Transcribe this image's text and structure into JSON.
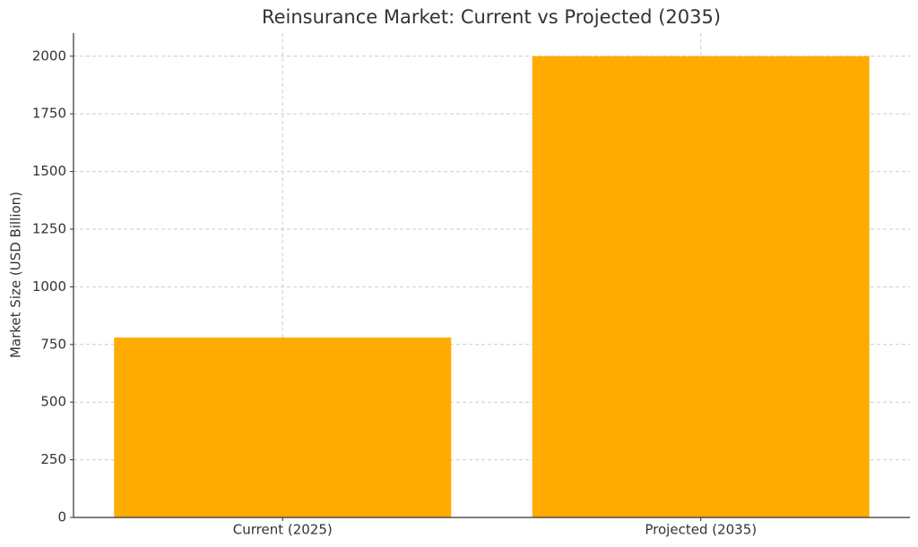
{
  "chart_data": {
    "type": "bar",
    "title": "Reinsurance Market: Current vs Projected (2035)",
    "ylabel": "Market Size (USD Billion)",
    "categories": [
      "Current (2025)",
      "Projected (2035)"
    ],
    "values": [
      780,
      2000
    ],
    "color": "#ffab00",
    "ylim": [
      0,
      2100
    ],
    "yticks": [
      0,
      250,
      500,
      750,
      1000,
      1250,
      1500,
      1750,
      2000
    ],
    "grid": true
  }
}
